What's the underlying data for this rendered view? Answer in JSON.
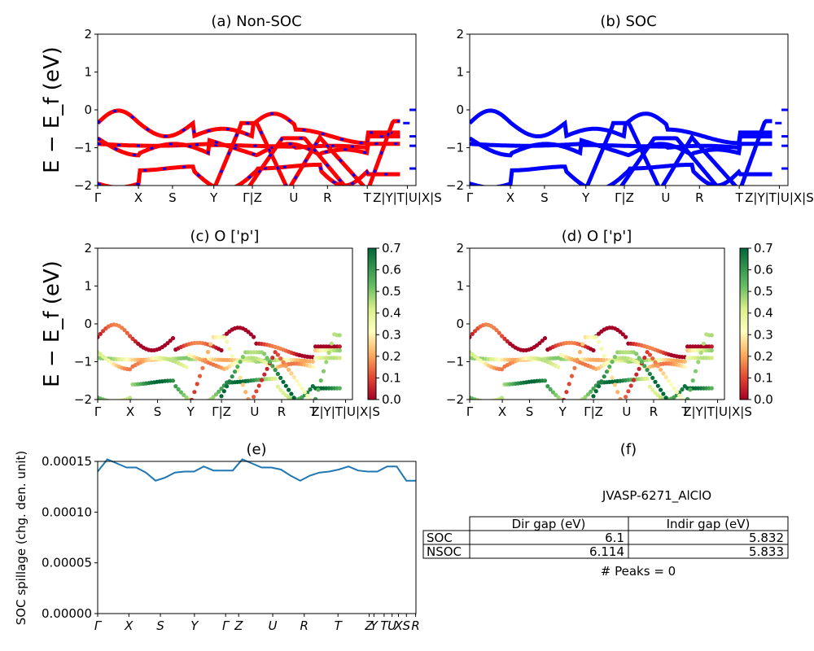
{
  "chart_data": [
    {
      "id": "a",
      "type": "line",
      "title": "(a) Non-SOC",
      "ylabel": "E − E_f (eV)",
      "ylim": [
        -2,
        2
      ],
      "yticks": [
        "−2",
        "−1",
        "0",
        "1",
        "2"
      ],
      "xticks": [
        "Γ",
        "X",
        "S",
        "Y",
        "Γ|Z",
        "U",
        "R",
        "T",
        "Z|Y|T|U|X|S"
      ],
      "colors": {
        "spin_up": "#ff0000",
        "spin_down": "#0000ff"
      },
      "note": "band structure, spin-polarized"
    },
    {
      "id": "b",
      "type": "line",
      "title": "(b) SOC",
      "ylim": [
        -2,
        2
      ],
      "yticks": [
        "−2",
        "−1",
        "0",
        "1",
        "2"
      ],
      "xticks": [
        "Γ",
        "X",
        "S",
        "Y",
        "Γ|Z",
        "U",
        "R",
        "T",
        "Z|Y|T|U|X|S"
      ],
      "colors": {
        "bands": "#0000ff"
      }
    },
    {
      "id": "c",
      "type": "scatter",
      "title": "(c)  O ['p']",
      "ylabel": "E − E_f (eV)",
      "ylim": [
        -2,
        2
      ],
      "yticks": [
        "−2",
        "−1",
        "0",
        "1",
        "2"
      ],
      "xticks": [
        "Γ",
        "X",
        "S",
        "Y",
        "Γ|Z",
        "U",
        "R",
        "T",
        "Z|Y|T|U|X|S"
      ],
      "colorbar": {
        "min": 0.0,
        "max": 0.7,
        "ticks": [
          "0.0",
          "0.1",
          "0.2",
          "0.3",
          "0.4",
          "0.5",
          "0.6",
          "0.7"
        ],
        "cmap": "RdYlGn"
      }
    },
    {
      "id": "d",
      "type": "scatter",
      "title": "(d) O ['p']",
      "ylim": [
        -2,
        2
      ],
      "yticks": [
        "−2",
        "−1",
        "0",
        "1",
        "2"
      ],
      "xticks": [
        "Γ",
        "X",
        "S",
        "Y",
        "Γ|Z",
        "U",
        "R",
        "T",
        "Z|Y|T|U|X|S"
      ],
      "colorbar": {
        "min": 0.0,
        "max": 0.7,
        "ticks": [
          "0.0",
          "0.1",
          "0.2",
          "0.3",
          "0.4",
          "0.5",
          "0.6",
          "0.7"
        ],
        "cmap": "RdYlGn"
      }
    },
    {
      "id": "e",
      "type": "line",
      "title": "(e)",
      "ylabel": "SOC spillage (chg. den. unit)",
      "ylim": [
        0,
        0.00015
      ],
      "yticks": [
        "0.00000",
        "0.00005",
        "0.00010",
        "0.00015"
      ],
      "xticks": [
        "Γ",
        "X",
        "S",
        "Y",
        "Γ",
        "Z",
        "U",
        "R",
        "T",
        "Z",
        "Y",
        "T",
        "U",
        "X",
        "S",
        "R"
      ],
      "color": "#1f77b4",
      "y": [
        0.00014,
        0.000152,
        0.000148,
        0.000144,
        0.000144,
        0.000139,
        0.000131,
        0.000134,
        0.000139,
        0.00014,
        0.00014,
        0.000145,
        0.000141,
        0.000141,
        0.000141,
        0.000152,
        0.000148,
        0.000144,
        0.000144,
        0.000142,
        0.000136,
        0.000131,
        0.000136,
        0.000139,
        0.00014,
        0.000142,
        0.000145,
        0.000141,
        0.00014,
        0.00014,
        0.000145,
        0.000145,
        0.000131,
        0.000131
      ]
    },
    {
      "id": "f",
      "type": "table",
      "title": "(f)",
      "caption": "JVASP-6271_AlClO",
      "columns": [
        "Dir gap (eV)",
        "Indir gap (eV)"
      ],
      "rows": [
        {
          "label": "SOC",
          "values": [
            "6.1",
            "5.832"
          ]
        },
        {
          "label": "NSOC",
          "values": [
            "6.114",
            "5.833"
          ]
        }
      ],
      "footer": "# Peaks = 0"
    }
  ]
}
